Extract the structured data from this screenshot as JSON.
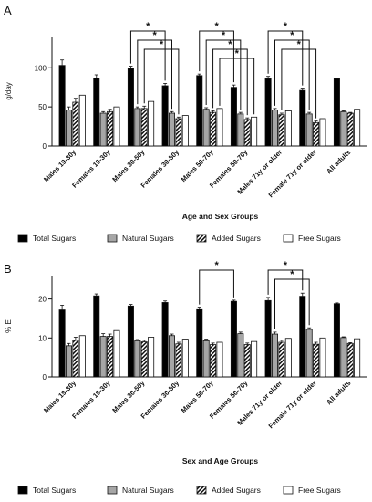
{
  "chart_data": [
    {
      "panel_label": "A",
      "type": "bar",
      "ylabel": "g/day",
      "xlabel": "Age and  Sex Groups",
      "ylim": [
        0,
        140
      ],
      "yticks": [
        0,
        50,
        100
      ],
      "grid": false,
      "legend_position": "bottom",
      "categories": [
        "Males 19-30y",
        "Females 19-30y",
        "Males 30-50y",
        "Females 30-50y",
        "Males 50-70y",
        "Females 50-70y",
        "Males 71y or older",
        "Female 71y or older",
        "All adults"
      ],
      "series": [
        {
          "name": "Total Sugars",
          "values": [
            103,
            87,
            99,
            77,
            90,
            75,
            86,
            71,
            86
          ],
          "errors": [
            7,
            4,
            3,
            3,
            2,
            3,
            3,
            3,
            1
          ]
        },
        {
          "name": "Natural Sugars",
          "values": [
            46,
            42,
            48,
            42,
            47,
            41,
            46,
            41,
            44
          ],
          "errors": [
            4,
            2,
            2,
            2,
            2,
            2,
            2,
            2,
            1
          ]
        },
        {
          "name": "Added Sugars",
          "values": [
            56,
            44,
            48,
            35,
            43,
            34,
            40,
            30,
            42
          ],
          "errors": [
            5,
            3,
            3,
            2,
            2,
            2,
            2,
            2,
            1
          ]
        },
        {
          "name": "Free Sugars",
          "values": [
            65,
            50,
            57,
            39,
            48,
            37,
            45,
            35,
            47
          ],
          "errors": [
            0,
            0,
            0,
            0,
            0,
            0,
            0,
            0,
            0
          ]
        }
      ],
      "significance": [
        {
          "from_category": 2,
          "from_series": 0,
          "to_category": 3,
          "to_series": 0,
          "label": "*"
        },
        {
          "from_category": 2,
          "from_series": 1,
          "to_category": 3,
          "to_series": 1,
          "label": "*"
        },
        {
          "from_category": 2,
          "from_series": 2,
          "to_category": 3,
          "to_series": 2,
          "label": "*"
        },
        {
          "from_category": 4,
          "from_series": 0,
          "to_category": 5,
          "to_series": 0,
          "label": "*"
        },
        {
          "from_category": 4,
          "from_series": 1,
          "to_category": 5,
          "to_series": 1,
          "label": "*"
        },
        {
          "from_category": 4,
          "from_series": 2,
          "to_category": 5,
          "to_series": 2,
          "label": "*"
        },
        {
          "from_category": 4,
          "from_series": 3,
          "to_category": 5,
          "to_series": 3,
          "label": "*"
        },
        {
          "from_category": 6,
          "from_series": 0,
          "to_category": 7,
          "to_series": 0,
          "label": "*"
        },
        {
          "from_category": 6,
          "from_series": 1,
          "to_category": 7,
          "to_series": 1,
          "label": "*"
        },
        {
          "from_category": 6,
          "from_series": 2,
          "to_category": 7,
          "to_series": 2,
          "label": "*"
        }
      ]
    },
    {
      "panel_label": "B",
      "type": "bar",
      "ylabel": "% E",
      "xlabel": "Sex and  Age Groups",
      "ylim": [
        0,
        26
      ],
      "yticks": [
        0,
        10,
        20
      ],
      "grid": false,
      "legend_position": "bottom",
      "categories": [
        "Males 19-30y",
        "Females 19-30y",
        "Males 30-50y",
        "Females 30-50y",
        "Males 50-70y",
        "Females 50-70y",
        "Males 71y or older",
        "Female 71y or older",
        "All adults"
      ],
      "series": [
        {
          "name": "Total Sugars",
          "values": [
            17.2,
            20.8,
            18.2,
            19.1,
            17.5,
            19.4,
            19.6,
            20.7,
            18.8
          ],
          "errors": [
            1.2,
            0.5,
            0.4,
            0.4,
            0.4,
            0.3,
            0.8,
            0.8,
            0.2
          ]
        },
        {
          "name": "Natural Sugars",
          "values": [
            8.0,
            10.4,
            9.3,
            10.6,
            9.3,
            11.1,
            11.0,
            12.2,
            10.1
          ],
          "errors": [
            0.6,
            0.7,
            0.3,
            0.4,
            0.4,
            0.4,
            0.5,
            0.4,
            0.2
          ]
        },
        {
          "name": "Added Sugars",
          "values": [
            9.4,
            10.4,
            9.0,
            8.5,
            8.3,
            8.3,
            8.9,
            8.4,
            8.6
          ],
          "errors": [
            0.8,
            0.6,
            0.4,
            0.4,
            0.4,
            0.4,
            0.5,
            0.5,
            0.2
          ]
        },
        {
          "name": "Free Sugars",
          "values": [
            10.6,
            11.9,
            10.2,
            9.7,
            8.9,
            9.1,
            9.9,
            10.0,
            9.8
          ],
          "errors": [
            0,
            0,
            0,
            0,
            0,
            0,
            0,
            0,
            0
          ]
        }
      ],
      "significance": [
        {
          "from_category": 4,
          "from_series": 0,
          "to_category": 5,
          "to_series": 0,
          "label": "*"
        },
        {
          "from_category": 6,
          "from_series": 0,
          "to_category": 7,
          "to_series": 0,
          "label": "*"
        },
        {
          "from_category": 6,
          "from_series": 1,
          "to_category": 7,
          "to_series": 1,
          "label": "*"
        }
      ]
    }
  ]
}
